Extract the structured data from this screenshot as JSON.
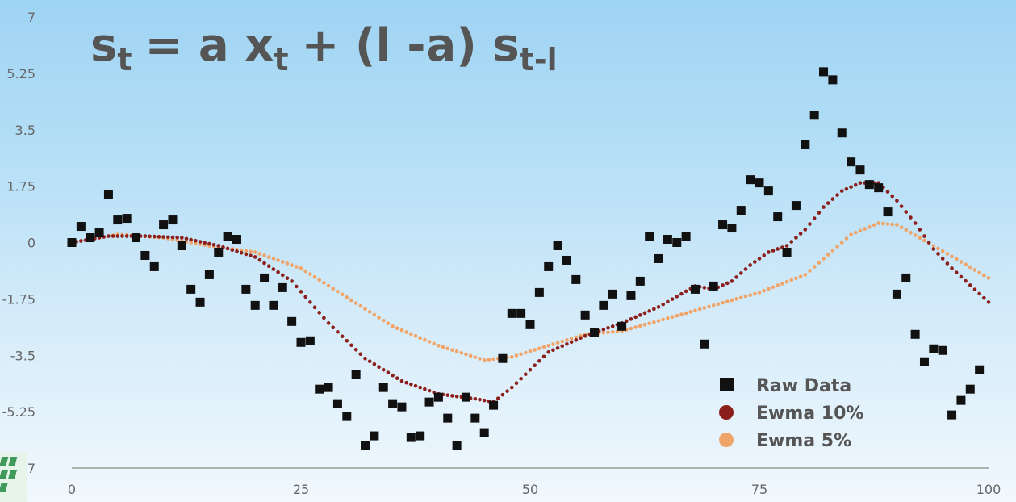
{
  "formula": {
    "lhs": "s",
    "lhs_sub": "t",
    "eq": "= a x",
    "x_sub": "t",
    "mid": "+ (l -a) s",
    "s_sub": "t-l"
  },
  "chart_data": {
    "type": "scatter",
    "xlim": [
      0,
      100
    ],
    "ylim": [
      -7,
      7
    ],
    "x_ticks": [
      "0",
      "25",
      "50",
      "75",
      "100"
    ],
    "y_ticks": [
      "7",
      "5.25",
      "3.5",
      "1.75",
      "0",
      "-1.75",
      "-3.5",
      "-5.25",
      "-7"
    ],
    "legend_position": "bottom-right",
    "series": [
      {
        "name": "Raw Data",
        "marker": "square",
        "color": "#111111",
        "points": [
          [
            0,
            0
          ],
          [
            1,
            0.5
          ],
          [
            2,
            0.15
          ],
          [
            3,
            0.3
          ],
          [
            4,
            1.5
          ],
          [
            5,
            0.7
          ],
          [
            6,
            0.75
          ],
          [
            7,
            0.15
          ],
          [
            8,
            -0.4
          ],
          [
            9,
            -0.75
          ],
          [
            10,
            0.55
          ],
          [
            11,
            0.7
          ],
          [
            12,
            -0.1
          ],
          [
            13,
            -1.45
          ],
          [
            14,
            -1.85
          ],
          [
            15,
            -1.0
          ],
          [
            16,
            -0.3
          ],
          [
            17,
            0.2
          ],
          [
            18,
            0.1
          ],
          [
            19,
            -1.45
          ],
          [
            20,
            -1.95
          ],
          [
            21,
            -1.1
          ],
          [
            22,
            -1.95
          ],
          [
            23,
            -1.4
          ],
          [
            24,
            -2.45
          ],
          [
            25,
            -3.1
          ],
          [
            26,
            -3.05
          ],
          [
            27,
            -4.55
          ],
          [
            28,
            -4.5
          ],
          [
            29,
            -5.0
          ],
          [
            30,
            -5.4
          ],
          [
            31,
            -4.1
          ],
          [
            32,
            -6.3
          ],
          [
            33,
            -6.0
          ],
          [
            34,
            -4.5
          ],
          [
            35,
            -5.0
          ],
          [
            36,
            -5.1
          ],
          [
            37,
            -6.05
          ],
          [
            38,
            -6.0
          ],
          [
            39,
            -4.95
          ],
          [
            40,
            -4.8
          ],
          [
            41,
            -5.45
          ],
          [
            42,
            -6.3
          ],
          [
            43,
            -4.8
          ],
          [
            44,
            -5.45
          ],
          [
            45,
            -5.9
          ],
          [
            46,
            -5.05
          ],
          [
            47,
            -3.6
          ],
          [
            48,
            -2.2
          ],
          [
            49,
            -2.2
          ],
          [
            50,
            -2.55
          ],
          [
            51,
            -1.55
          ],
          [
            52,
            -0.75
          ],
          [
            53,
            -0.1
          ],
          [
            54,
            -0.55
          ],
          [
            55,
            -1.15
          ],
          [
            56,
            -2.25
          ],
          [
            57,
            -2.8
          ],
          [
            58,
            -1.95
          ],
          [
            59,
            -1.6
          ],
          [
            60,
            -2.6
          ],
          [
            61,
            -1.65
          ],
          [
            62,
            -1.2
          ],
          [
            63,
            0.2
          ],
          [
            64,
            -0.5
          ],
          [
            65,
            0.1
          ],
          [
            66,
            0.0
          ],
          [
            67,
            0.2
          ],
          [
            68,
            -1.45
          ],
          [
            69,
            -3.15
          ],
          [
            70,
            -1.35
          ],
          [
            71,
            0.55
          ],
          [
            72,
            0.45
          ],
          [
            73,
            1.0
          ],
          [
            74,
            1.95
          ],
          [
            75,
            1.85
          ],
          [
            76,
            1.6
          ],
          [
            77,
            0.8
          ],
          [
            78,
            -0.3
          ],
          [
            79,
            1.15
          ],
          [
            80,
            3.05
          ],
          [
            81,
            3.95
          ],
          [
            82,
            5.3
          ],
          [
            83,
            5.05
          ],
          [
            84,
            3.4
          ],
          [
            85,
            2.5
          ],
          [
            86,
            2.25
          ],
          [
            87,
            1.8
          ],
          [
            88,
            1.7
          ],
          [
            89,
            0.95
          ],
          [
            90,
            -1.6
          ],
          [
            91,
            -1.1
          ],
          [
            92,
            -2.85
          ],
          [
            93,
            -3.7
          ],
          [
            94,
            -3.3
          ],
          [
            95,
            -3.35
          ],
          [
            96,
            -5.35
          ],
          [
            97,
            -4.9
          ],
          [
            98,
            -4.55
          ],
          [
            99,
            -3.95
          ]
        ]
      },
      {
        "name": "Ewma 10%",
        "marker": "dotted-line",
        "color": "#8b1f1c",
        "x": [
          0,
          4,
          8,
          12,
          16,
          20,
          24,
          28,
          32,
          36,
          40,
          44,
          46,
          48,
          52,
          56,
          60,
          64,
          68,
          70,
          72,
          74,
          76,
          78,
          80,
          82,
          84,
          86,
          88,
          90,
          92,
          94,
          96,
          100
        ],
        "y": [
          0,
          0.2,
          0.2,
          0.15,
          -0.1,
          -0.45,
          -1.2,
          -2.5,
          -3.6,
          -4.3,
          -4.7,
          -4.85,
          -4.95,
          -4.5,
          -3.4,
          -2.9,
          -2.5,
          -2.0,
          -1.35,
          -1.45,
          -1.2,
          -0.7,
          -0.3,
          -0.1,
          0.4,
          1.1,
          1.6,
          1.85,
          1.85,
          1.3,
          0.6,
          -0.2,
          -0.8,
          -1.85
        ]
      },
      {
        "name": "Ewma 5%",
        "marker": "dotted-line",
        "color": "#f0a468",
        "x": [
          0,
          5,
          10,
          15,
          20,
          25,
          30,
          35,
          40,
          45,
          48,
          52,
          56,
          60,
          65,
          70,
          75,
          80,
          85,
          88,
          90,
          94,
          97,
          100
        ],
        "y": [
          0,
          0.25,
          0.15,
          -0.1,
          -0.3,
          -0.8,
          -1.7,
          -2.6,
          -3.2,
          -3.65,
          -3.55,
          -3.2,
          -2.85,
          -2.75,
          -2.35,
          -1.95,
          -1.55,
          -1.0,
          0.25,
          0.6,
          0.55,
          -0.1,
          -0.6,
          -1.1
        ]
      }
    ]
  }
}
